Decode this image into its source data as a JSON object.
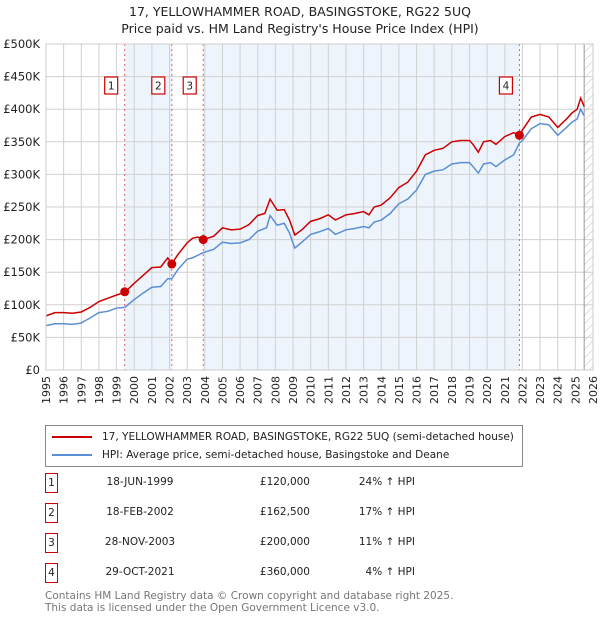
{
  "chart_data": {
    "type": "line",
    "title": "17, YELLOWHAMMER ROAD, BASINGSTOKE, RG22 5UQ",
    "subtitle": "Price paid vs. HM Land Registry's House Price Index (HPI)",
    "xlim": [
      1995,
      2026
    ],
    "ylim": [
      0,
      500000
    ],
    "x_ticks": [
      "1995",
      "1996",
      "1997",
      "1998",
      "1999",
      "2000",
      "2001",
      "2002",
      "2003",
      "2004",
      "2005",
      "2006",
      "2007",
      "2008",
      "2009",
      "2010",
      "2011",
      "2012",
      "2013",
      "2014",
      "2015",
      "2016",
      "2017",
      "2018",
      "2019",
      "2020",
      "2021",
      "2022",
      "2023",
      "2024",
      "2025",
      "2026"
    ],
    "y_ticks": [
      {
        "v": 0,
        "label": "£0"
      },
      {
        "v": 50000,
        "label": "£50K"
      },
      {
        "v": 100000,
        "label": "£100K"
      },
      {
        "v": 150000,
        "label": "£150K"
      },
      {
        "v": 200000,
        "label": "£200K"
      },
      {
        "v": 250000,
        "label": "£250K"
      },
      {
        "v": 300000,
        "label": "£300K"
      },
      {
        "v": 350000,
        "label": "£350K"
      },
      {
        "v": 400000,
        "label": "£400K"
      },
      {
        "v": 450000,
        "label": "£450K"
      },
      {
        "v": 500000,
        "label": "£500K"
      }
    ],
    "grid": true,
    "forecast_hatch_from": 2025.5,
    "series": [
      {
        "name": "17, YELLOWHAMMER ROAD, BASINGSTOKE, RG22 5UQ (semi-detached house)",
        "color": "#cc0000",
        "points": [
          [
            1995,
            83
          ],
          [
            1995.5,
            88
          ],
          [
            1996,
            88
          ],
          [
            1996.5,
            87
          ],
          [
            1997,
            89
          ],
          [
            1997.5,
            96
          ],
          [
            1998,
            105
          ],
          [
            1998.5,
            110
          ],
          [
            1999,
            115
          ],
          [
            1999.46,
            119
          ],
          [
            2000,
            133
          ],
          [
            2000.5,
            145
          ],
          [
            2001,
            157
          ],
          [
            2001.5,
            158
          ],
          [
            2001.9,
            172
          ],
          [
            2002.13,
            163
          ],
          [
            2002.5,
            178
          ],
          [
            2003,
            195
          ],
          [
            2003.3,
            202
          ],
          [
            2003.6,
            204
          ],
          [
            2003.9,
            200
          ],
          [
            2004.5,
            205
          ],
          [
            2005,
            218
          ],
          [
            2005.5,
            215
          ],
          [
            2006,
            216
          ],
          [
            2006.5,
            223
          ],
          [
            2007,
            237
          ],
          [
            2007.4,
            240
          ],
          [
            2007.7,
            262
          ],
          [
            2008.1,
            245
          ],
          [
            2008.5,
            246
          ],
          [
            2008.8,
            230
          ],
          [
            2009.1,
            207
          ],
          [
            2009.5,
            215
          ],
          [
            2010,
            228
          ],
          [
            2010.5,
            232
          ],
          [
            2011,
            238
          ],
          [
            2011.4,
            230
          ],
          [
            2012,
            238
          ],
          [
            2012.5,
            240
          ],
          [
            2013,
            243
          ],
          [
            2013.3,
            238
          ],
          [
            2013.6,
            250
          ],
          [
            2014,
            253
          ],
          [
            2014.5,
            264
          ],
          [
            2015,
            280
          ],
          [
            2015.5,
            288
          ],
          [
            2016,
            305
          ],
          [
            2016.5,
            330
          ],
          [
            2017,
            337
          ],
          [
            2017.5,
            340
          ],
          [
            2018,
            350
          ],
          [
            2018.5,
            352
          ],
          [
            2019,
            352
          ],
          [
            2019.2,
            346
          ],
          [
            2019.5,
            334
          ],
          [
            2019.8,
            350
          ],
          [
            2020.2,
            352
          ],
          [
            2020.5,
            346
          ],
          [
            2021,
            358
          ],
          [
            2021.5,
            364
          ],
          [
            2021.83,
            360
          ],
          [
            2022,
            368
          ],
          [
            2022.5,
            388
          ],
          [
            2023,
            392
          ],
          [
            2023.5,
            388
          ],
          [
            2024,
            372
          ],
          [
            2024.5,
            385
          ],
          [
            2024.8,
            394
          ],
          [
            2025.1,
            400
          ],
          [
            2025.3,
            417
          ],
          [
            2025.5,
            404
          ]
        ]
      },
      {
        "name": "HPI: Average price, semi-detached house, Basingstoke and Deane",
        "color": "#5b8fd4",
        "points": [
          [
            1995,
            68
          ],
          [
            1995.5,
            71
          ],
          [
            1996,
            71
          ],
          [
            1996.5,
            70
          ],
          [
            1997,
            72
          ],
          [
            1997.5,
            80
          ],
          [
            1998,
            88
          ],
          [
            1998.5,
            90
          ],
          [
            1999,
            95
          ],
          [
            1999.46,
            96
          ],
          [
            2000,
            108
          ],
          [
            2000.5,
            118
          ],
          [
            2001,
            127
          ],
          [
            2001.5,
            128
          ],
          [
            2001.9,
            140
          ],
          [
            2002.13,
            140
          ],
          [
            2002.5,
            155
          ],
          [
            2003,
            170
          ],
          [
            2003.3,
            172
          ],
          [
            2003.9,
            180
          ],
          [
            2004.5,
            185
          ],
          [
            2005,
            196
          ],
          [
            2005.5,
            194
          ],
          [
            2006,
            195
          ],
          [
            2006.5,
            200
          ],
          [
            2007,
            213
          ],
          [
            2007.5,
            218
          ],
          [
            2007.7,
            237
          ],
          [
            2008.1,
            222
          ],
          [
            2008.5,
            225
          ],
          [
            2008.8,
            210
          ],
          [
            2009.1,
            187
          ],
          [
            2009.5,
            196
          ],
          [
            2010,
            208
          ],
          [
            2010.5,
            212
          ],
          [
            2011,
            217
          ],
          [
            2011.4,
            208
          ],
          [
            2012,
            215
          ],
          [
            2012.5,
            217
          ],
          [
            2013,
            220
          ],
          [
            2013.3,
            218
          ],
          [
            2013.6,
            227
          ],
          [
            2014,
            230
          ],
          [
            2014.5,
            240
          ],
          [
            2015,
            255
          ],
          [
            2015.5,
            262
          ],
          [
            2016,
            276
          ],
          [
            2016.5,
            300
          ],
          [
            2017,
            305
          ],
          [
            2017.5,
            307
          ],
          [
            2018,
            316
          ],
          [
            2018.5,
            318
          ],
          [
            2019,
            318
          ],
          [
            2019.2,
            312
          ],
          [
            2019.5,
            302
          ],
          [
            2019.8,
            316
          ],
          [
            2020.2,
            318
          ],
          [
            2020.5,
            312
          ],
          [
            2021,
            322
          ],
          [
            2021.5,
            330
          ],
          [
            2021.83,
            348
          ],
          [
            2022,
            352
          ],
          [
            2022.5,
            370
          ],
          [
            2023,
            378
          ],
          [
            2023.5,
            376
          ],
          [
            2024,
            360
          ],
          [
            2024.5,
            372
          ],
          [
            2024.8,
            380
          ],
          [
            2025.1,
            385
          ],
          [
            2025.3,
            400
          ],
          [
            2025.5,
            390
          ]
        ]
      }
    ],
    "sales": [
      {
        "n": "1",
        "x": 1999.46,
        "value": 120000,
        "date": "18-JUN-1999",
        "price": "£120,000",
        "hpi": "24% ↑ HPI"
      },
      {
        "n": "2",
        "x": 2002.13,
        "value": 162500,
        "date": "18-FEB-2002",
        "price": "£162,500",
        "hpi": "17% ↑ HPI"
      },
      {
        "n": "3",
        "x": 2003.91,
        "value": 200000,
        "date": "28-NOV-2003",
        "price": "£200,000",
        "hpi": "11% ↑ HPI"
      },
      {
        "n": "4",
        "x": 2021.83,
        "value": 360000,
        "date": "29-OCT-2021",
        "price": "£360,000",
        "hpi": "4% ↑ HPI"
      }
    ],
    "shaded_ranges": [
      [
        1999.46,
        2002.13
      ],
      [
        2003.91,
        2021.83
      ]
    ]
  },
  "legend": {
    "red": "17, YELLOWHAMMER ROAD, BASINGSTOKE, RG22 5UQ (semi-detached house)",
    "blue": "HPI: Average price, semi-detached house, Basingstoke and Deane"
  },
  "footer": {
    "line1": "Contains HM Land Registry data © Crown copyright and database right 2025.",
    "line2": "This data is licensed under the Open Government Licence v3.0."
  }
}
